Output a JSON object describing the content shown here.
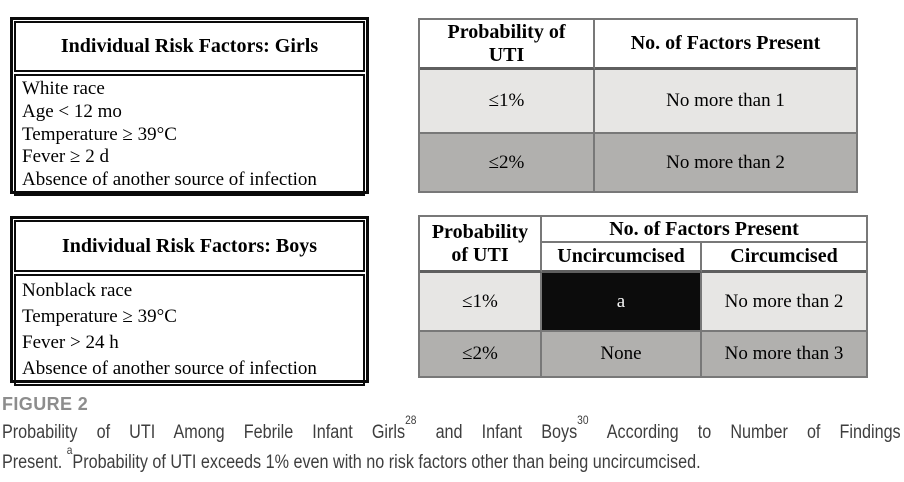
{
  "colors": {
    "row-light": "#e7e6e4",
    "row-dark": "#b1b0ae",
    "border-gray": "#787878",
    "border-gray-heavy": "#5f5f5f",
    "black-cell": "#0c0c0c",
    "black-cell-text": "#f5f5f5",
    "figure-label": "#8d8d8d",
    "caption-text": "#3e3e3e",
    "risk-border": "#0a0a0a"
  },
  "girls_risk_table": {
    "title": "Individual Risk Factors: Girls",
    "factors": [
      "White race",
      "Age < 12 mo",
      "Temperature ≥ 39°C",
      "Fever ≥ 2 d",
      "Absence of another source of infection"
    ]
  },
  "boys_risk_table": {
    "title": "Individual Risk Factors: Boys",
    "factors": [
      "Nonblack race",
      "Temperature ≥ 39°C",
      "Fever > 24 h",
      "Absence of another source of infection"
    ]
  },
  "girls_probability_table": {
    "header_probability_lines": [
      "Probability of",
      "UTI"
    ],
    "header_factors": "No. of Factors Present",
    "rows": [
      {
        "probability": "≤1%",
        "factors": "No more than 1"
      },
      {
        "probability": "≤2%",
        "factors": "No more than 2"
      }
    ]
  },
  "boys_probability_table": {
    "header_probability_lines": [
      "Probability",
      "of UTI"
    ],
    "header_factors": "No. of Factors Present",
    "subheaders": {
      "uncircumcised": "Uncircumcised",
      "circumcised": "Circumcised"
    },
    "rows": [
      {
        "probability": "≤1%",
        "uncircumcised": "a",
        "circumcised": "No more than 2"
      },
      {
        "probability": "≤2%",
        "uncircumcised": "None",
        "circumcised": "No more than 3"
      }
    ]
  },
  "figure": {
    "label": "FIGURE 2",
    "caption": {
      "seg1": "Probability of UTI Among Febrile Infant Girls",
      "sup1": "28",
      "seg2": " and Infant Boys",
      "sup2": "30",
      "seg3": " According to Number of Findings",
      "seg4": "Present. ",
      "sup3": "a",
      "seg5": "Probability of UTI exceeds 1% even with no risk factors other than being uncircumcised."
    }
  }
}
